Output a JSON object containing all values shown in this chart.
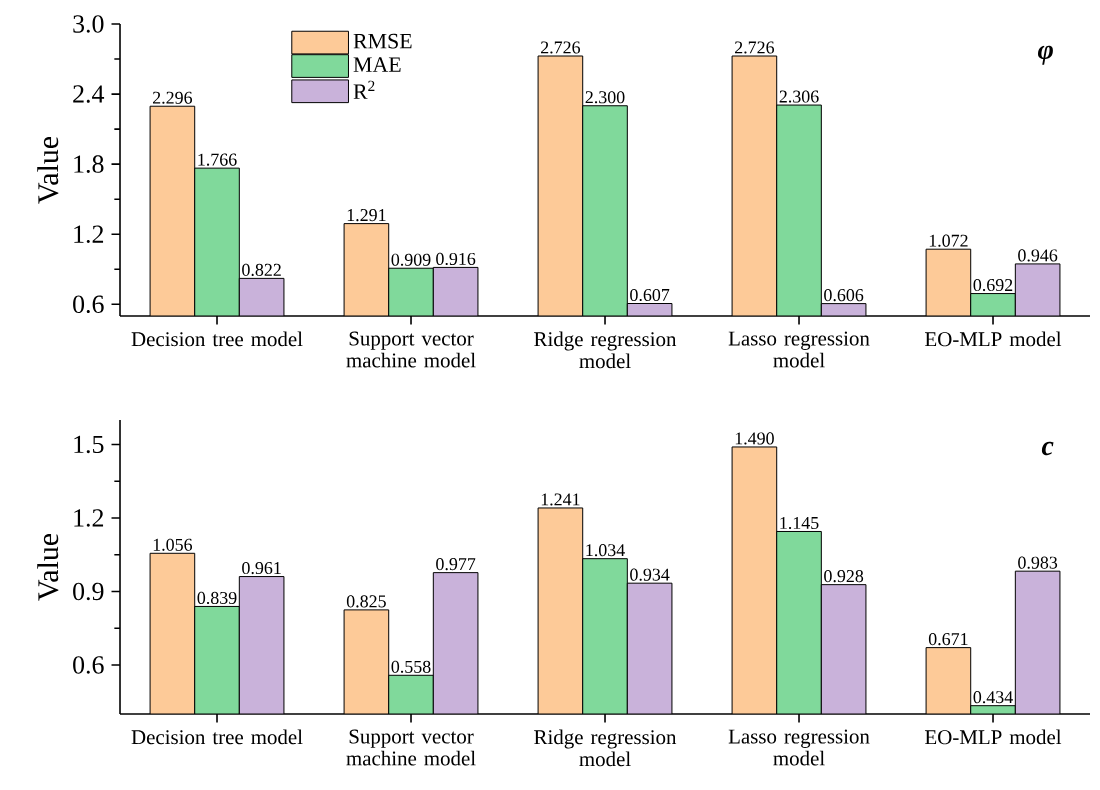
{
  "chart_data": [
    {
      "type": "bar",
      "ylabel": "Value",
      "categories": [
        "Decision tree model",
        "Support vector machine model",
        "Ridge regression model",
        "Lasso regression model",
        "EO-MLP model"
      ],
      "series": [
        {
          "name": "RMSE",
          "color": "#fdca98",
          "values": [
            2.296,
            1.291,
            2.726,
            2.726,
            1.072
          ],
          "value_labels": [
            "2.296",
            "1.291",
            "2.726",
            "2.726",
            "1.072"
          ]
        },
        {
          "name": "MAE",
          "color": "#80d99b",
          "values": [
            1.766,
            0.909,
            2.3,
            2.306,
            0.692
          ],
          "value_labels": [
            "1.766",
            "0.909",
            "2.300",
            "2.306",
            "0.692"
          ]
        },
        {
          "name": "R$^{2}$",
          "color": "#c9b2da",
          "values": [
            0.822,
            0.916,
            0.607,
            0.606,
            0.946
          ],
          "value_labels": [
            "0.822",
            "0.916",
            "0.607",
            "0.606",
            "0.946"
          ]
        }
      ],
      "ylim": [
        0.5,
        3.0
      ],
      "yticks": [
        0.6,
        1.2,
        1.8,
        2.4,
        {
          "value": 3.0,
          "label": "3.0"
        }
      ],
      "legend": "top left",
      "annotations": [
        "φ"
      ]
    },
    {
      "type": "bar",
      "ylabel": "Value",
      "categories": [
        "Decision tree model",
        "Support vector machine model",
        "Ridge regression model",
        "Lasso regression model",
        "EO-MLP model"
      ],
      "series": [
        {
          "color": "#fdca98",
          "values": [
            1.056,
            0.825,
            1.241,
            1.49,
            0.671
          ],
          "value_labels": [
            "1.056",
            "0.825",
            "1.241",
            "1.490",
            "0.671"
          ]
        },
        {
          "color": "#80d99b",
          "values": [
            0.839,
            0.558,
            1.034,
            1.145,
            0.434
          ],
          "value_labels": [
            "0.839",
            "0.558",
            "1.034",
            "1.145",
            "0.434"
          ]
        },
        {
          "color": "#c9b2da",
          "values": [
            0.961,
            0.977,
            0.934,
            0.928,
            0.983
          ],
          "value_labels": [
            "0.961",
            "0.977",
            "0.934",
            "0.928",
            "0.983"
          ]
        }
      ],
      "ylim": [
        0.4,
        1.6
      ],
      "yticks": [
        0.6,
        0.9,
        1.2,
        1.5
      ],
      "annotations": [
        "c"
      ]
    }
  ]
}
